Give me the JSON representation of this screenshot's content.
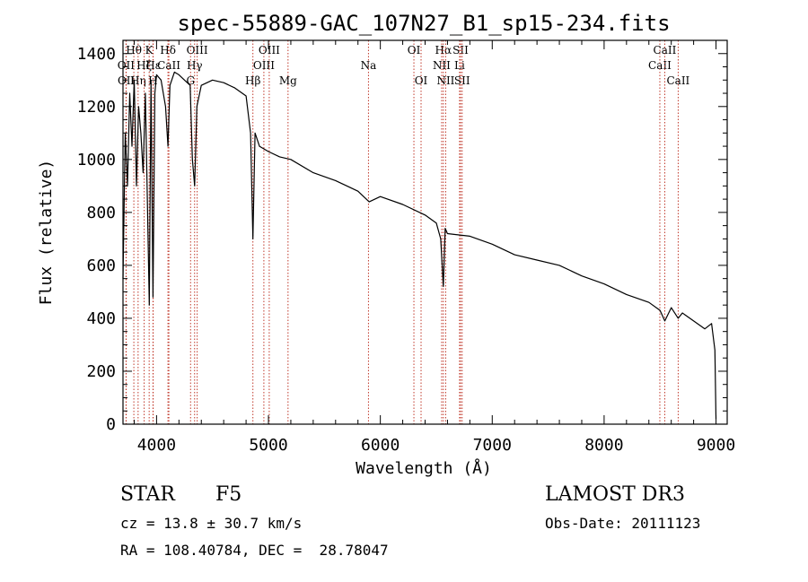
{
  "chart_data": {
    "type": "line",
    "title": "spec-55889-GAC_107N27_B1_sp15-234.fits",
    "xlabel": "Wavelength (Å)",
    "ylabel": "Flux (relative)",
    "xlim": [
      3700,
      9100
    ],
    "ylim": [
      0,
      1450
    ],
    "x_ticks": [
      4000,
      5000,
      6000,
      7000,
      8000,
      9000
    ],
    "y_ticks": [
      0,
      200,
      400,
      600,
      800,
      1000,
      1200,
      1400
    ],
    "x_tick_labels": [
      "4000",
      "5000",
      "6000",
      "7000",
      "8000",
      "9000"
    ],
    "y_tick_labels": [
      "0",
      "200",
      "400",
      "600",
      "800",
      "1000",
      "1200",
      "1400"
    ],
    "series": [
      {
        "name": "spectrum",
        "x": [
          3700,
          3720,
          3740,
          3760,
          3780,
          3800,
          3820,
          3840,
          3860,
          3880,
          3900,
          3920,
          3935,
          3950,
          3968,
          3985,
          4000,
          4040,
          4080,
          4102,
          4120,
          4160,
          4200,
          4250,
          4300,
          4320,
          4340,
          4360,
          4400,
          4500,
          4600,
          4700,
          4800,
          4840,
          4861,
          4880,
          4920,
          5000,
          5100,
          5200,
          5400,
          5600,
          5800,
          5900,
          6000,
          6200,
          6400,
          6500,
          6540,
          6563,
          6580,
          6600,
          6800,
          7000,
          7200,
          7400,
          7600,
          7800,
          8000,
          8200,
          8400,
          8500,
          8542,
          8600,
          8662,
          8700,
          8800,
          8900,
          8960,
          8990,
          9000
        ],
        "y": [
          550,
          1100,
          900,
          1250,
          1050,
          1300,
          900,
          1200,
          1100,
          950,
          1250,
          800,
          450,
          1300,
          480,
          1250,
          1320,
          1300,
          1200,
          1050,
          1280,
          1330,
          1320,
          1300,
          1280,
          1000,
          900,
          1200,
          1280,
          1300,
          1290,
          1270,
          1240,
          1100,
          700,
          1100,
          1050,
          1030,
          1010,
          1000,
          950,
          920,
          880,
          840,
          860,
          830,
          790,
          760,
          700,
          520,
          740,
          720,
          710,
          680,
          640,
          620,
          600,
          560,
          530,
          490,
          460,
          430,
          390,
          440,
          400,
          420,
          390,
          360,
          380,
          280,
          20
        ]
      }
    ],
    "spectral_lines": [
      {
        "label": "Hθ",
        "wl": 3797,
        "row": 0
      },
      {
        "label": "OII",
        "wl": 3727,
        "row": 1
      },
      {
        "label": "OII",
        "wl": 3729,
        "row": 2
      },
      {
        "label": "Hη",
        "wl": 3835,
        "row": 2
      },
      {
        "label": "Hζ",
        "wl": 3889,
        "row": 1
      },
      {
        "label": "K",
        "wl": 3934,
        "row": 0
      },
      {
        "label": "H",
        "wl": 3968,
        "row": 2
      },
      {
        "label": "Hε",
        "wl": 3970,
        "row": 1
      },
      {
        "label": "Hδ",
        "wl": 4102,
        "row": 0
      },
      {
        "label": "CaII",
        "wl": 4110,
        "row": 1
      },
      {
        "label": "OIII",
        "wl": 4363,
        "row": 0
      },
      {
        "label": "Hγ",
        "wl": 4340,
        "row": 1
      },
      {
        "label": "G",
        "wl": 4304,
        "row": 2
      },
      {
        "label": "Hβ",
        "wl": 4861,
        "row": 2
      },
      {
        "label": "OIII",
        "wl": 4959,
        "row": 1
      },
      {
        "label": "OIII",
        "wl": 5007,
        "row": 0
      },
      {
        "label": "Mg",
        "wl": 5175,
        "row": 2
      },
      {
        "label": "Na",
        "wl": 5894,
        "row": 1
      },
      {
        "label": "OI",
        "wl": 6300,
        "row": 0
      },
      {
        "label": "OI",
        "wl": 6364,
        "row": 2
      },
      {
        "label": "Hα",
        "wl": 6563,
        "row": 0
      },
      {
        "label": "NII",
        "wl": 6548,
        "row": 1
      },
      {
        "label": "NII",
        "wl": 6584,
        "row": 2
      },
      {
        "label": "SII",
        "wl": 6717,
        "row": 0
      },
      {
        "label": "Li",
        "wl": 6708,
        "row": 1
      },
      {
        "label": "SII",
        "wl": 6731,
        "row": 2
      },
      {
        "label": "CaII",
        "wl": 8498,
        "row": 1
      },
      {
        "label": "CaII",
        "wl": 8542,
        "row": 0
      },
      {
        "label": "CaII",
        "wl": 8662,
        "row": 2
      }
    ]
  },
  "info": {
    "object_class": "STAR",
    "subclass": "F5",
    "survey": "LAMOST DR3",
    "cz": "cz = 13.8 ± 30.7 km/s",
    "obs_date": "Obs-Date: 20111123",
    "radec": "RA = 108.40784, DEC =  28.78047"
  }
}
